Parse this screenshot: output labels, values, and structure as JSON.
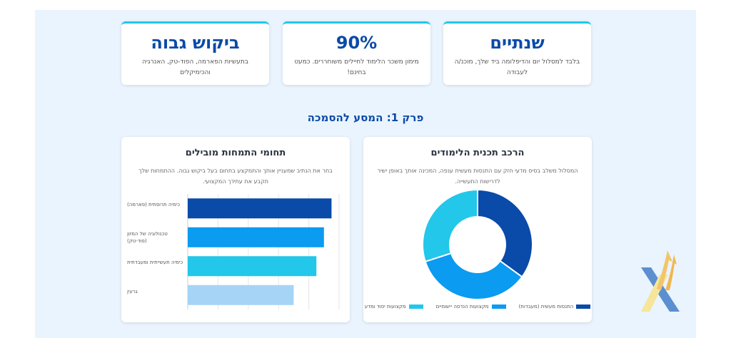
{
  "stats": [
    {
      "value": "ביקוש גבוה",
      "desc": "בתעשיות הפארמה, הפוד-טק, האנרגיה והכימיקלים"
    },
    {
      "value": "90%",
      "desc": "מימון משכר הלימוד לחיילים משוחררים. כמעט בחינם!"
    },
    {
      "value": "שנתיים",
      "desc": "בלבד למסלול יום והדיפלומה ביד שלך, מוכנ/ה לעבודה"
    }
  ],
  "section_title": "פרק 1: המסע להסמכה",
  "left_card": {
    "title": "תחומי התמחות מובילים",
    "desc": "בחר את הנתיב שמעניין אותך והתמקצע בתחום בעל ביקוש גבוה. ההתמחות שלך תקבע את עתידך המקצועי."
  },
  "right_card": {
    "title": "הרכב תכנית הלימודים",
    "desc": "המסלול משלב בסיס מדעי חזק עם התנסות מעשית ענפה, המכינה אותך באופן ישיר לדרישות התעשייה."
  },
  "chart_data": [
    {
      "type": "bar",
      "orientation": "horizontal",
      "categories": [
        "כימיה תרופתית (פארמה)",
        "טכנולוגיה של המזון (פוד-טק)",
        "כימיה תעשייתית ומעבדתית",
        "גרעין"
      ],
      "values": [
        95,
        90,
        85,
        70
      ],
      "xlim": [
        0,
        100
      ],
      "grid": true,
      "colors": [
        "#0a4aa8",
        "#0b9bf0",
        "#22c7ea",
        "#a6d4f7"
      ]
    },
    {
      "type": "pie",
      "donut": true,
      "labels": [
        "התנסות מעשית (מעבדות)",
        "מקצועות הנדסה יישומיים",
        "מקצועות יסוד ומדע"
      ],
      "values": [
        35,
        35,
        30
      ],
      "colors": [
        "#0a4aa8",
        "#0b9bf0",
        "#22c7ea"
      ],
      "legend": "bottom"
    }
  ]
}
